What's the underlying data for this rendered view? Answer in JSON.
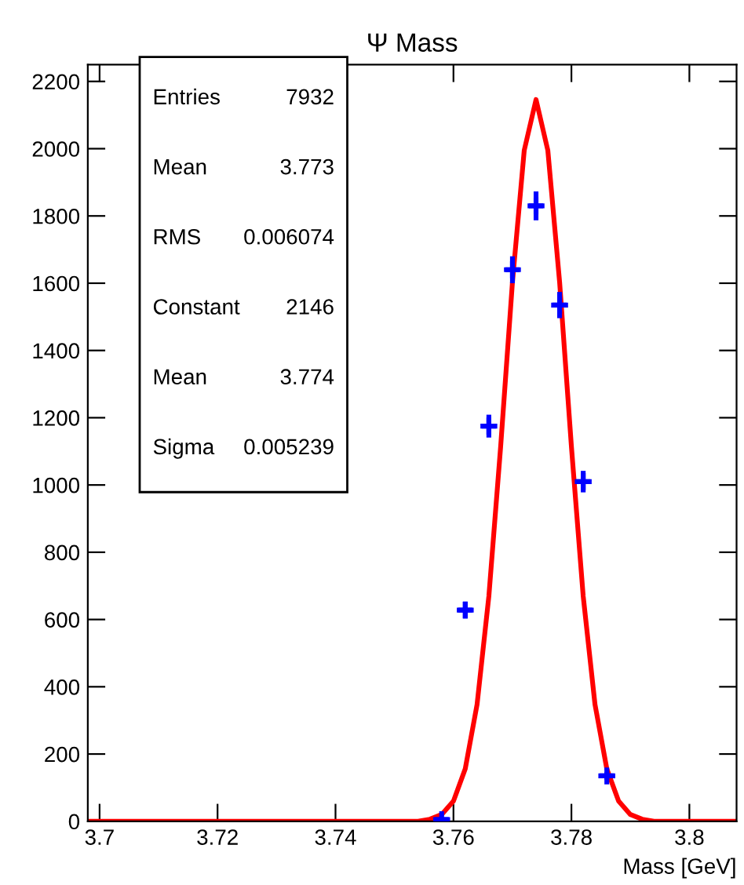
{
  "chart_data": {
    "type": "scatter",
    "title": "Ψ Mass",
    "xlabel": "Mass [GeV]",
    "xlim": [
      3.698,
      3.808
    ],
    "xticks": [
      {
        "value": 3.7,
        "label": "3.7"
      },
      {
        "value": 3.72,
        "label": "3.72"
      },
      {
        "value": 3.74,
        "label": "3.74"
      },
      {
        "value": 3.76,
        "label": "3.76"
      },
      {
        "value": 3.78,
        "label": "3.78"
      },
      {
        "value": 3.8,
        "label": "3.8"
      }
    ],
    "ylim": [
      0,
      2250
    ],
    "yticks": [
      0,
      200,
      400,
      600,
      800,
      1000,
      1200,
      1400,
      1600,
      1800,
      2000,
      2200
    ],
    "grid": false,
    "legend": false,
    "series": [
      {
        "color": "#0000ff",
        "marker": "cross",
        "x": [
          3.758,
          3.762,
          3.766,
          3.77,
          3.774,
          3.778,
          3.782,
          3.786
        ],
        "values": [
          5,
          628,
          1175,
          1640,
          1830,
          1535,
          1010,
          135
        ],
        "errors": [
          2,
          25,
          34,
          40,
          43,
          39,
          32,
          12
        ],
        "xerrors": [
          0.0012,
          0.0012,
          0.0012,
          0.0012,
          0.0012,
          0.0012,
          0.0012,
          0.0012
        ]
      },
      {
        "type": "line",
        "color": "#ff0000",
        "x": [
          3.698,
          3.754,
          3.756,
          3.758,
          3.76,
          3.762,
          3.764,
          3.766,
          3.768,
          3.77,
          3.772,
          3.774,
          3.776,
          3.778,
          3.78,
          3.782,
          3.784,
          3.786,
          3.788,
          3.79,
          3.792,
          3.794,
          3.808
        ],
        "values": [
          0,
          0,
          6,
          20,
          60,
          156,
          347,
          669,
          1114,
          1603,
          1995,
          2146,
          1995,
          1603,
          1114,
          669,
          347,
          156,
          60,
          20,
          6,
          0,
          0
        ]
      }
    ],
    "annotations": [
      "Entries",
      "7932",
      "Mean",
      "3.773",
      "RMS",
      "0.006074",
      "Constant",
      "2146",
      "Mean",
      "3.774",
      "Sigma",
      "0.005239"
    ]
  }
}
